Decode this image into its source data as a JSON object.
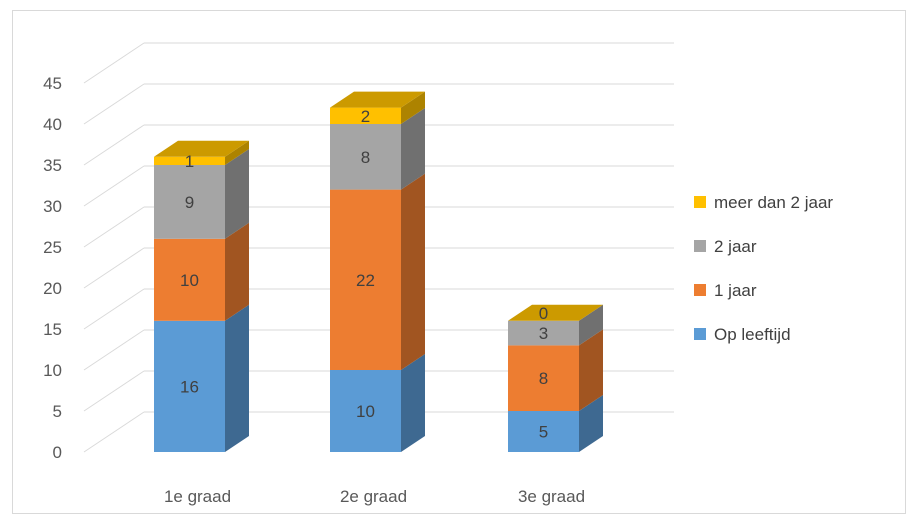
{
  "chart_data": {
    "type": "bar",
    "stacked": true,
    "style": "3d",
    "categories": [
      "1e graad",
      "2e graad",
      "3e graad"
    ],
    "series": [
      {
        "name": "Op leeftijd",
        "values": [
          16,
          10,
          5
        ],
        "color": "#5b9bd5"
      },
      {
        "name": "1 jaar",
        "values": [
          10,
          22,
          8
        ],
        "color": "#ed7d31"
      },
      {
        "name": "2 jaar",
        "values": [
          9,
          8,
          3
        ],
        "color": "#a5a5a5"
      },
      {
        "name": "meer dan 2 jaar",
        "values": [
          1,
          2,
          0
        ],
        "color": "#ffc000"
      }
    ],
    "yticks": [
      0,
      5,
      10,
      15,
      20,
      25,
      30,
      35,
      40,
      45
    ],
    "ylim": [
      0,
      45
    ],
    "grid": true,
    "legend": "right"
  }
}
